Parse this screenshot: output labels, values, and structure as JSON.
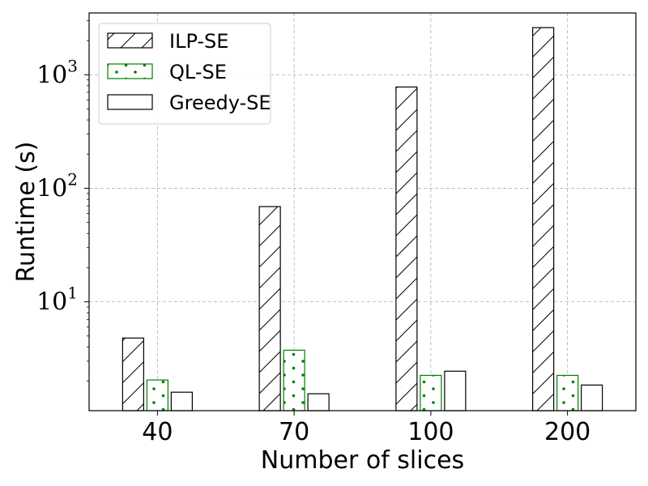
{
  "chart_data": {
    "type": "bar",
    "xlabel": "Number of slices",
    "ylabel": "Runtime (s)",
    "yscale": "log",
    "ylim": [
      1.1,
      3500
    ],
    "categories": [
      "40",
      "70",
      "100",
      "200"
    ],
    "yticks": [
      10,
      100,
      1000
    ],
    "ytick_labels": [
      {
        "base": "10",
        "exp": "1"
      },
      {
        "base": "10",
        "exp": "2"
      },
      {
        "base": "10",
        "exp": "3"
      }
    ],
    "grid": true,
    "legend_position": "top-left",
    "series": [
      {
        "name": "ILP-SE",
        "values": [
          4.8,
          69,
          780,
          2600
        ],
        "color": "#000000",
        "pattern": "hatch"
      },
      {
        "name": "QL-SE",
        "values": [
          2.05,
          3.75,
          2.25,
          2.25
        ],
        "color": "#008000",
        "pattern": "dots"
      },
      {
        "name": "Greedy-SE",
        "values": [
          1.6,
          1.55,
          2.45,
          1.85
        ],
        "color": "#000000",
        "pattern": "none"
      }
    ]
  }
}
